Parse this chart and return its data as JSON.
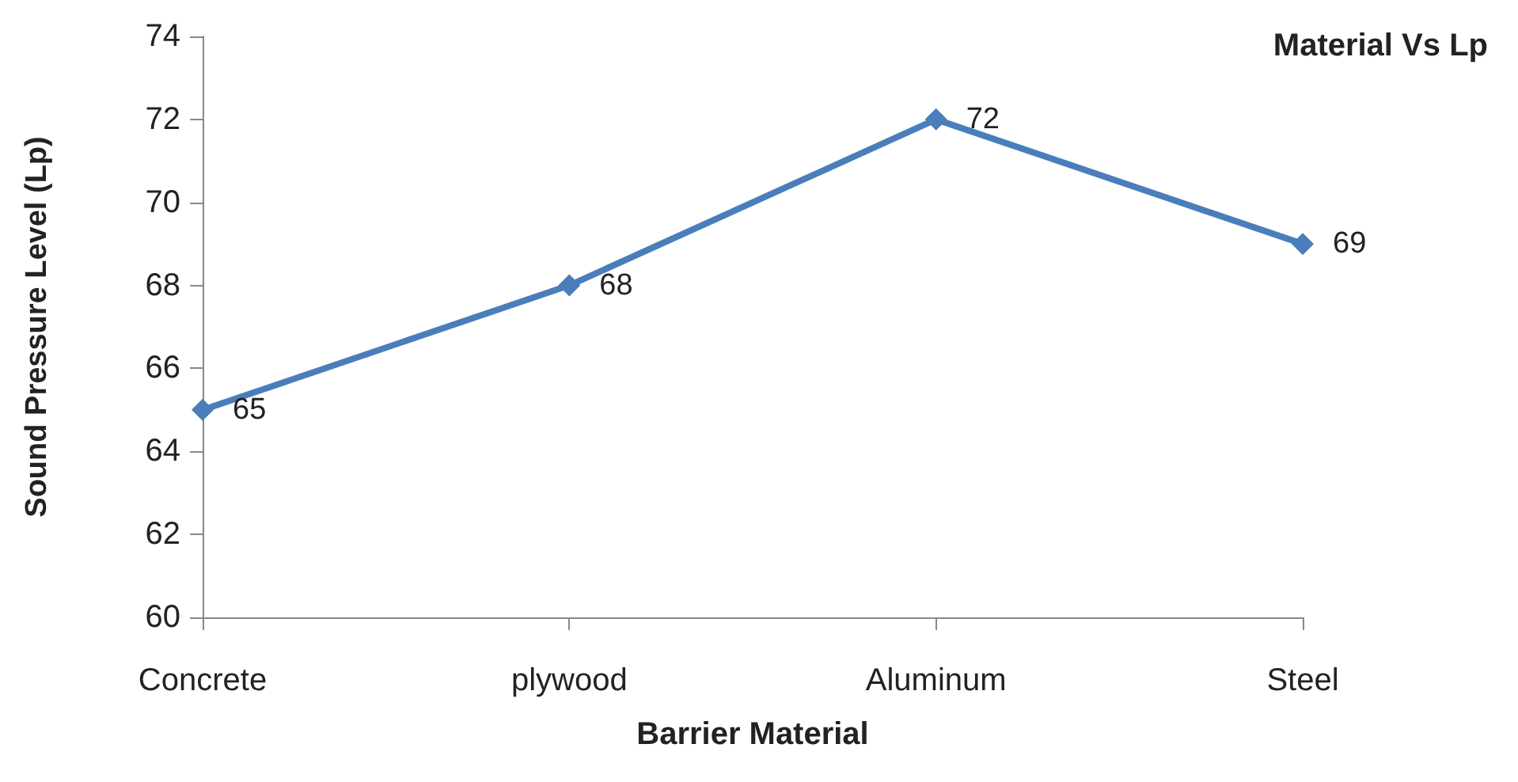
{
  "chart_data": {
    "type": "line",
    "title": "Material Vs Lp",
    "xlabel": "Barrier Material",
    "ylabel": "Sound Pressure Level (Lp)",
    "categories": [
      "Concrete",
      "plywood",
      "Aluminum",
      "Steel"
    ],
    "series": [
      {
        "color": "#4a7ebb",
        "values": [
          65,
          68,
          72,
          69
        ]
      }
    ],
    "ylim": [
      60,
      74
    ],
    "yticks": [
      60,
      62,
      64,
      66,
      68,
      70,
      72,
      74
    ],
    "grid": false,
    "marker": "diamond",
    "line_style": "solid",
    "data_labels": true
  }
}
